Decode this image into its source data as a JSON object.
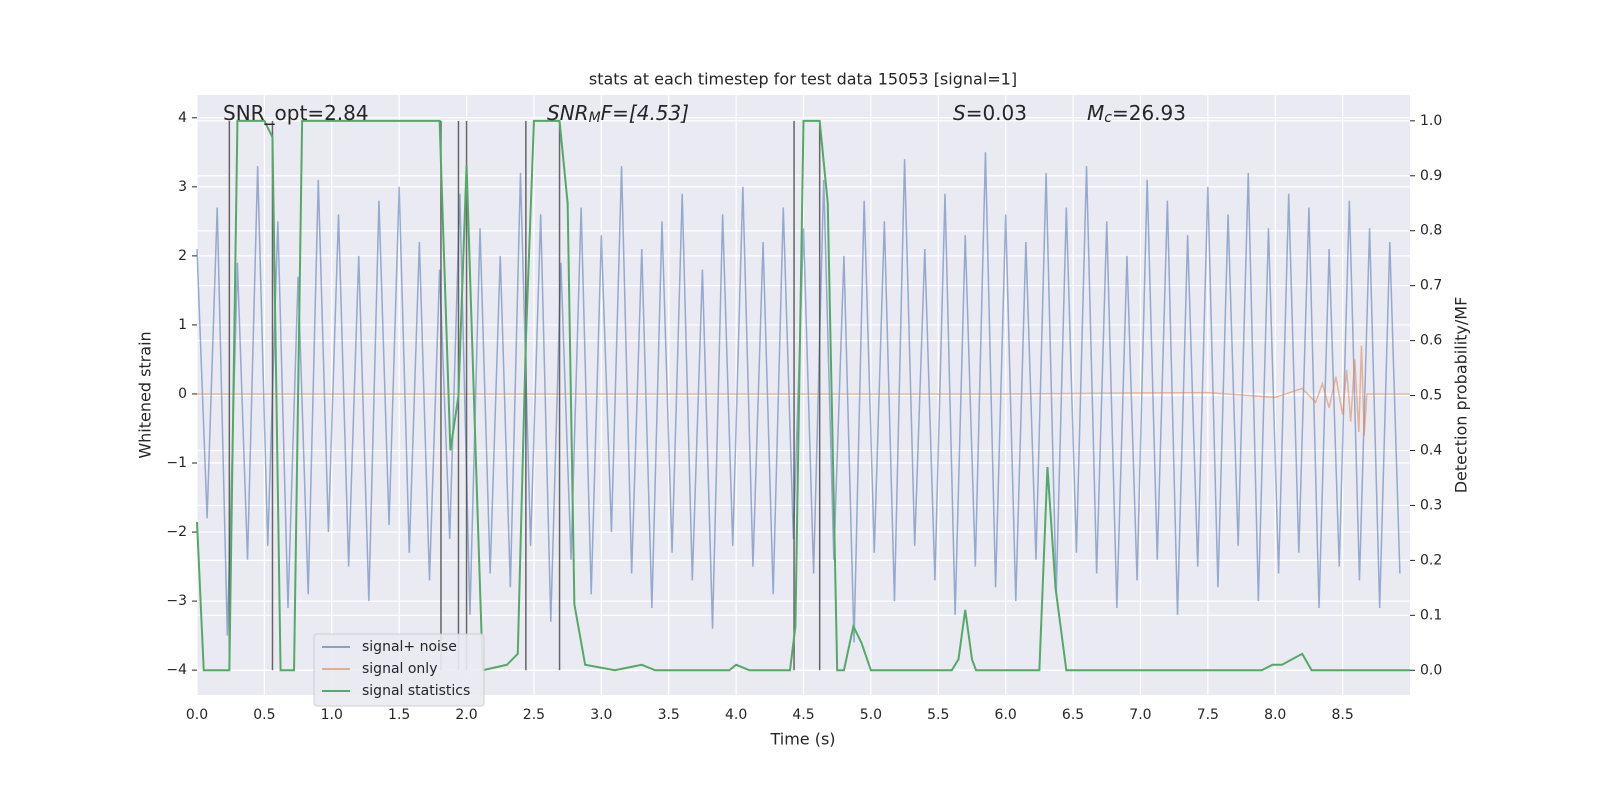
{
  "chart_data": {
    "type": "line",
    "title": "stats at each timestep for test data 15053 [signal=1]",
    "xlabel": "Time (s)",
    "ylabel": "Whitened strain",
    "y2label": "Detection probability/MF",
    "xlim": [
      0,
      9
    ],
    "ylim": [
      -4.36,
      4.33
    ],
    "y2lim": [
      -0.045,
      1.047
    ],
    "xticks": [
      {
        "value": 0,
        "label": "0.0"
      },
      0.5,
      {
        "value": 1,
        "label": "1.0"
      },
      1.5,
      {
        "value": 2,
        "label": "2.0"
      },
      2.5,
      {
        "value": 3,
        "label": "3.0"
      },
      3.5,
      {
        "value": 4,
        "label": "4.0"
      },
      4.5,
      {
        "value": 5,
        "label": "5.0"
      },
      5.5,
      {
        "value": 6,
        "label": "6.0"
      },
      6.5,
      {
        "value": 7,
        "label": "7.0"
      },
      7.5,
      {
        "value": 8,
        "label": "8.0"
      },
      8.5
    ],
    "yticks": [
      {
        "value": -4,
        "label": "−4"
      },
      {
        "value": -3,
        "label": "−3"
      },
      {
        "value": -2,
        "label": "−2"
      },
      {
        "value": -1,
        "label": "−1"
      },
      0,
      1,
      2,
      3,
      4
    ],
    "y2ticks": [
      {
        "value": 0,
        "label": "0.0"
      },
      0.1,
      0.2,
      0.3,
      0.4,
      0.5,
      0.6,
      0.7,
      0.8,
      0.9,
      {
        "value": 1,
        "label": "1.0"
      }
    ],
    "grid": true,
    "legend": "lower left",
    "annotations": [
      {
        "text": "SNR_opt=2.84"
      },
      {
        "text": "SNR",
        "sub": "M",
        "after": "F=[4.53]"
      },
      {
        "text": "S",
        "after": "=0.03"
      },
      {
        "text": "M",
        "sub": "c",
        "after": "=26.93"
      }
    ],
    "vlines": {
      "color": "#444444",
      "x": [
        0.24,
        0.56,
        1.81,
        1.94,
        2.0,
        2.44,
        2.69,
        4.43,
        4.62
      ],
      "span": [
        0,
        1
      ]
    },
    "series": [
      {
        "name": "signal+ noise",
        "color": "#4c72b0",
        "x": [
          0,
          0.075,
          0.15,
          0.225,
          0.3,
          0.375,
          0.45,
          0.525,
          0.6,
          0.675,
          0.75,
          0.825,
          0.9,
          0.975,
          1.05,
          1.125,
          1.2,
          1.275,
          1.35,
          1.425,
          1.5,
          1.575,
          1.65,
          1.725,
          1.8,
          1.875,
          1.95,
          2.025,
          2.1,
          2.175,
          2.25,
          2.325,
          2.4,
          2.475,
          2.55,
          2.625,
          2.7,
          2.775,
          2.85,
          2.925,
          3,
          3.075,
          3.15,
          3.225,
          3.3,
          3.375,
          3.45,
          3.525,
          3.6,
          3.675,
          3.75,
          3.825,
          3.9,
          3.975,
          4.05,
          4.125,
          4.2,
          4.275,
          4.35,
          4.425,
          4.5,
          4.575,
          4.65,
          4.725,
          4.8,
          4.875,
          4.95,
          5.025,
          5.1,
          5.175,
          5.25,
          5.325,
          5.4,
          5.475,
          5.55,
          5.625,
          5.7,
          5.775,
          5.85,
          5.925,
          6,
          6.075,
          6.15,
          6.225,
          6.3,
          6.375,
          6.45,
          6.525,
          6.6,
          6.675,
          6.75,
          6.825,
          6.9,
          6.975,
          7.05,
          7.125,
          7.2,
          7.275,
          7.35,
          7.425,
          7.5,
          7.575,
          7.65,
          7.725,
          7.8,
          7.875,
          7.95,
          8.025,
          8.1,
          8.175,
          8.25,
          8.325,
          8.4,
          8.475,
          8.55,
          8.625,
          8.7,
          8.775,
          8.85,
          8.925
        ],
        "values": [
          2.1,
          -1.8,
          2.7,
          -3.5,
          1.9,
          -2.4,
          3.3,
          -2.2,
          2.5,
          -3.1,
          1.7,
          -2.9,
          3.1,
          -2.0,
          2.6,
          -2.5,
          2.0,
          -3.0,
          2.8,
          -1.9,
          3.0,
          -2.3,
          2.2,
          -2.7,
          1.8,
          -2.1,
          2.9,
          -3.2,
          2.4,
          -2.6,
          2.0,
          -2.8,
          3.2,
          -2.2,
          2.6,
          -3.3,
          1.9,
          -2.4,
          2.7,
          -2.9,
          2.3,
          -2.0,
          3.3,
          -2.6,
          2.1,
          -3.1,
          2.5,
          -2.3,
          2.9,
          -2.7,
          1.8,
          -3.4,
          2.6,
          -2.2,
          3.0,
          -2.5,
          2.2,
          -2.9,
          2.7,
          -2.1,
          2.4,
          -2.6,
          3.1,
          -2.4,
          2.0,
          -3.6,
          2.8,
          -2.3,
          2.5,
          -3.0,
          3.4,
          -2.2,
          2.1,
          -2.7,
          2.9,
          -3.2,
          2.3,
          -2.5,
          3.5,
          -2.8,
          2.6,
          -3.0,
          2.2,
          -2.4,
          3.2,
          -2.9,
          2.7,
          -2.3,
          3.3,
          -2.6,
          2.5,
          -3.1,
          2.0,
          -2.7,
          3.1,
          -2.4,
          2.8,
          -3.2,
          2.3,
          -2.5,
          3.0,
          -2.8,
          2.6,
          -2.2,
          3.2,
          -3.0,
          2.4,
          -2.6,
          2.9,
          -2.3,
          2.7,
          -3.1,
          2.1,
          -2.5,
          2.8,
          -2.7,
          2.4,
          -3.1,
          2.2,
          -2.6
        ]
      },
      {
        "name": "signal only",
        "color": "#dd8452",
        "x": [
          0,
          6.0,
          7.5,
          8.0,
          8.2,
          8.3,
          8.35,
          8.4,
          8.45,
          8.5,
          8.53,
          8.56,
          8.59,
          8.62,
          8.64,
          8.66,
          8.68,
          9.0
        ],
        "values": [
          0,
          0,
          0.02,
          -0.05,
          0.08,
          -0.12,
          0.15,
          -0.2,
          0.25,
          -0.3,
          0.35,
          -0.4,
          0.5,
          -0.55,
          0.7,
          -0.6,
          0,
          0
        ]
      },
      {
        "name": "signal statistics",
        "color": "#55a868",
        "axis": "y2",
        "x": [
          0,
          0.05,
          0.24,
          0.3,
          0.5,
          0.56,
          0.62,
          0.72,
          0.78,
          1.8,
          1.88,
          1.94,
          2.0,
          2.08,
          2.12,
          2.3,
          2.38,
          2.44,
          2.5,
          2.69,
          2.75,
          2.8,
          2.88,
          3.1,
          3.3,
          3.4,
          3.95,
          4.0,
          4.1,
          4.4,
          4.44,
          4.5,
          4.62,
          4.68,
          4.75,
          4.8,
          4.87,
          4.93,
          5.0,
          5.6,
          5.65,
          5.7,
          5.75,
          5.78,
          6.25,
          6.31,
          6.37,
          6.45,
          7.9,
          7.98,
          8.05,
          8.2,
          8.27,
          9.0
        ],
        "values": [
          0.27,
          0,
          0,
          1,
          1,
          0.97,
          0,
          0,
          1,
          1,
          0.4,
          0.5,
          0.92,
          0.3,
          0,
          0.01,
          0.03,
          0.6,
          1,
          1,
          0.85,
          0.12,
          0.01,
          0,
          0.01,
          0,
          0,
          0.01,
          0,
          0,
          0.08,
          1,
          1,
          0.85,
          0,
          0,
          0.08,
          0.05,
          0,
          0,
          0.02,
          0.11,
          0.02,
          0,
          0,
          0.37,
          0.15,
          0,
          0,
          0.01,
          0.01,
          0.03,
          0,
          0
        ]
      }
    ]
  }
}
